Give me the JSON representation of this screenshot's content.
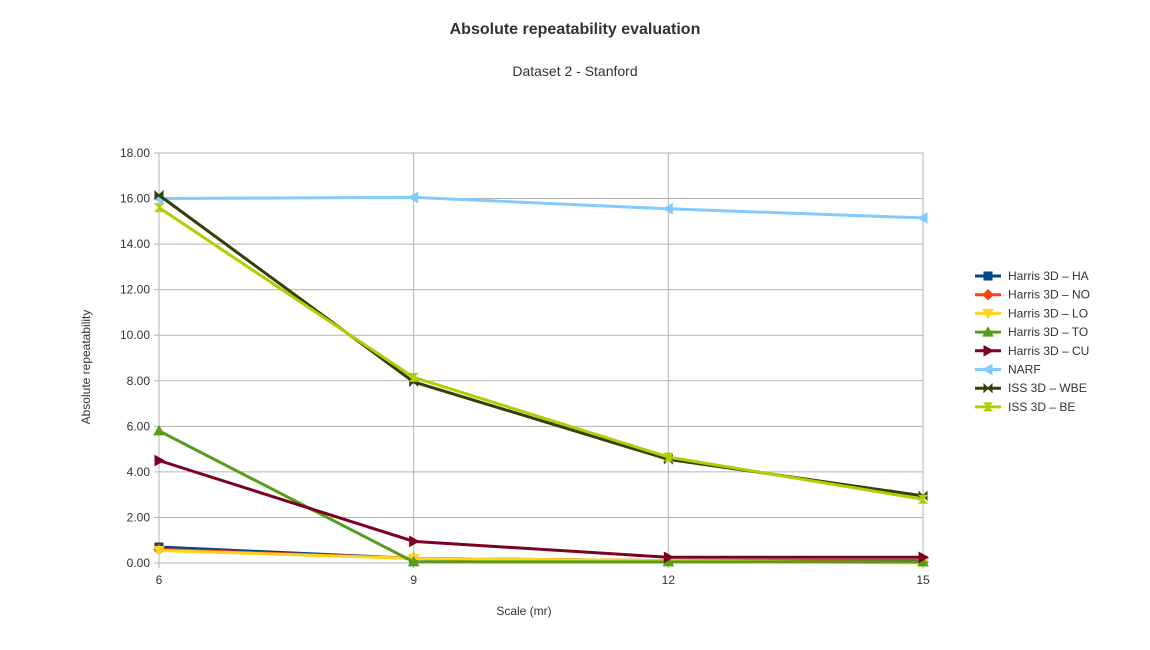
{
  "chart_data": {
    "type": "line",
    "title": "Absolute repeatability evaluation",
    "subtitle": "Dataset 2 - Stanford",
    "xlabel": "Scale (mr)",
    "ylabel": "Absolute repeatability",
    "x": [
      6,
      9,
      12,
      15
    ],
    "x_tick_labels": [
      "6",
      "9",
      "12",
      "15"
    ],
    "ylim": [
      0,
      18
    ],
    "y_ticks": [
      0,
      2,
      4,
      6,
      8,
      10,
      12,
      14,
      16,
      18
    ],
    "y_tick_labels": [
      "0.00",
      "2.00",
      "4.00",
      "6.00",
      "8.00",
      "10.00",
      "12.00",
      "14.00",
      "16.00",
      "18.00"
    ],
    "grid": true,
    "legend_position": "right",
    "series": [
      {
        "name": "Harris 3D – HA",
        "color": "#004586",
        "marker": "square",
        "values": [
          0.7,
          0.2,
          0.1,
          0.1
        ]
      },
      {
        "name": "Harris 3D – NO",
        "color": "#ff420e",
        "marker": "diamond",
        "values": [
          0.6,
          0.2,
          0.1,
          0.05
        ]
      },
      {
        "name": "Harris 3D – LO",
        "color": "#ffd320",
        "marker": "triangle-down",
        "values": [
          0.55,
          0.2,
          0.1,
          0.0
        ]
      },
      {
        "name": "Harris 3D – TO",
        "color": "#579d1c",
        "marker": "triangle-up",
        "values": [
          5.8,
          0.05,
          0.05,
          0.05
        ]
      },
      {
        "name": "Harris 3D – CU",
        "color": "#7e0021",
        "marker": "triangle-right",
        "values": [
          4.5,
          0.95,
          0.25,
          0.25
        ]
      },
      {
        "name": "NARF",
        "color": "#83caff",
        "marker": "triangle-left",
        "values": [
          16.0,
          16.05,
          15.55,
          15.15
        ]
      },
      {
        "name": "ISS 3D – WBE",
        "color": "#314004",
        "marker": "bowtie",
        "values": [
          16.15,
          7.95,
          4.55,
          2.95
        ]
      },
      {
        "name": "ISS 3D – BE",
        "color": "#aecf00",
        "marker": "hourglass",
        "values": [
          15.6,
          8.15,
          4.65,
          2.8
        ]
      }
    ]
  }
}
